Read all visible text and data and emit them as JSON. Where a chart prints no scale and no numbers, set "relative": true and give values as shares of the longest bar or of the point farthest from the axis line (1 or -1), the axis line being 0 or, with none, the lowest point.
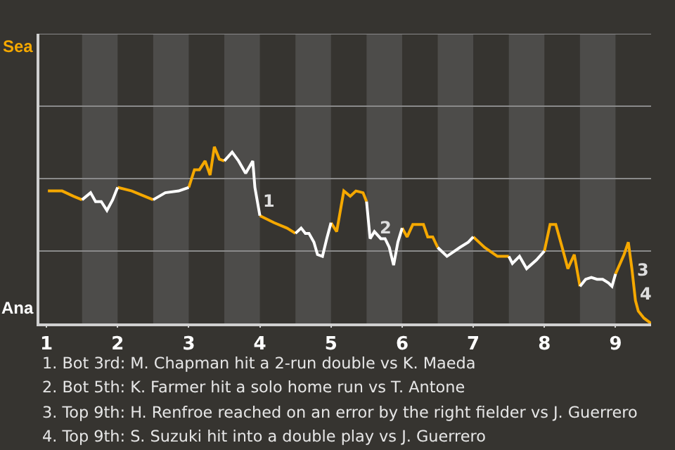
{
  "chart_data": {
    "type": "line",
    "relative": true,
    "x": [
      1.02,
      1.22,
      1.38,
      1.5,
      1.62,
      1.69,
      1.77,
      1.85,
      1.93,
      2.0,
      2.2,
      2.38,
      2.5,
      2.67,
      2.86,
      3.0,
      3.08,
      3.15,
      3.23,
      3.3,
      3.36,
      3.43,
      3.5,
      3.61,
      3.7,
      3.8,
      3.9,
      3.93,
      4.0,
      4.2,
      4.38,
      4.5,
      4.58,
      4.64,
      4.69,
      4.76,
      4.81,
      4.88,
      4.94,
      5.0,
      5.08,
      5.18,
      5.27,
      5.35,
      5.45,
      5.5,
      5.55,
      5.61,
      5.7,
      5.76,
      5.82,
      5.88,
      5.94,
      6.0,
      6.07,
      6.15,
      6.3,
      6.36,
      6.43,
      6.5,
      6.63,
      6.81,
      6.93,
      7.0,
      7.16,
      7.34,
      7.5,
      7.55,
      7.65,
      7.75,
      7.89,
      8.0,
      8.08,
      8.16,
      8.25,
      8.33,
      8.42,
      8.5,
      8.58,
      8.66,
      8.74,
      8.82,
      8.9,
      8.95,
      9.0,
      9.12,
      9.18,
      9.23,
      9.28,
      9.32,
      9.4,
      9.5
    ],
    "series": [
      {
        "color": "#f5a800",
        "values": [
          0.75,
          0.75,
          0.72,
          0.7,
          null,
          null,
          null,
          null,
          null,
          0.77,
          0.75,
          0.72,
          0.7,
          null,
          null,
          0.77,
          0.87,
          0.87,
          0.92,
          0.84,
          1,
          0.93,
          0.92,
          null,
          null,
          null,
          null,
          null,
          0.61,
          0.57,
          0.54,
          0.51,
          null,
          null,
          null,
          null,
          null,
          null,
          null,
          0.57,
          0.52,
          0.75,
          0.72,
          0.75,
          0.74,
          0.69,
          null,
          null,
          null,
          null,
          null,
          null,
          null,
          0.54,
          0.49,
          0.56,
          0.56,
          0.49,
          0.49,
          0.43,
          null,
          null,
          null,
          0.49,
          0.43,
          0.38,
          0.38,
          null,
          null,
          null,
          null,
          0.41,
          0.56,
          0.56,
          0.43,
          0.31,
          0.39,
          0.21,
          null,
          null,
          null,
          null,
          null,
          null,
          0.28,
          0.39,
          0.46,
          0.31,
          0.13,
          0.07,
          0.03,
          0
        ]
      },
      {
        "color": "#ffffff",
        "values": [
          null,
          null,
          null,
          0.7,
          0.74,
          0.69,
          0.69,
          0.64,
          0.7,
          0.77,
          null,
          null,
          0.7,
          0.74,
          0.75,
          0.77,
          null,
          null,
          null,
          null,
          null,
          null,
          0.92,
          0.97,
          0.92,
          0.85,
          0.92,
          0.77,
          0.61,
          null,
          null,
          0.51,
          0.54,
          0.51,
          0.51,
          0.46,
          0.39,
          0.38,
          0.48,
          0.57,
          null,
          null,
          null,
          null,
          null,
          0.69,
          0.48,
          0.52,
          0.48,
          0.48,
          0.43,
          0.33,
          0.46,
          0.54,
          null,
          null,
          null,
          null,
          null,
          0.43,
          0.38,
          0.43,
          0.46,
          0.49,
          null,
          null,
          0.38,
          0.34,
          0.38,
          0.31,
          0.36,
          0.41,
          null,
          null,
          null,
          null,
          null,
          0.21,
          0.25,
          0.26,
          0.25,
          0.25,
          0.23,
          0.21,
          0.28,
          null,
          null,
          null,
          null,
          null,
          null,
          null
        ]
      }
    ],
    "xlim": [
      0.9,
      9.5
    ],
    "xticks": [
      1,
      2,
      3,
      4,
      5,
      6,
      7,
      8,
      9
    ],
    "ref_lines": [
      {
        "axis": "y",
        "value": 0.41,
        "color": "#8a8a8a"
      },
      {
        "axis": "y",
        "value": 0.82,
        "color": "#8a8a8a"
      },
      {
        "axis": "y",
        "value": 1.23,
        "color": "#8a8a8a"
      },
      {
        "axis": "y",
        "value": 1.64,
        "color": "#8a8a8a"
      }
    ],
    "marker": "none",
    "line_style": "solid",
    "bands": [
      {
        "axis": "x",
        "from": 1.5,
        "to": 2,
        "color": "#4d4c4a"
      },
      {
        "axis": "x",
        "from": 2.5,
        "to": 3,
        "color": "#4d4c4a"
      },
      {
        "axis": "x",
        "from": 3.5,
        "to": 4,
        "color": "#4d4c4a"
      },
      {
        "axis": "x",
        "from": 4.5,
        "to": 5,
        "color": "#4d4c4a"
      },
      {
        "axis": "x",
        "from": 5.5,
        "to": 6,
        "color": "#4d4c4a"
      },
      {
        "axis": "x",
        "from": 6.5,
        "to": 7,
        "color": "#4d4c4a"
      },
      {
        "axis": "x",
        "from": 7.5,
        "to": 8,
        "color": "#4d4c4a"
      },
      {
        "axis": "x",
        "from": 8.5,
        "to": 9,
        "color": "#4d4c4a"
      }
    ],
    "annotations": [
      "Sea",
      "Ana",
      {
        "text": "1",
        "x": 3.97,
        "y": 0.69
      },
      {
        "text": "2",
        "x": 5.6,
        "y": 0.54
      },
      {
        "text": "3",
        "x": 9.23,
        "y": 0.3
      },
      {
        "text": "4",
        "x": 9.27,
        "y": 0.17
      },
      "1. Bot 3rd: M. Chapman hit a 2-run double vs K. Maeda",
      "2. Bot 5th: K. Farmer hit a solo home run vs T. Antone",
      "3. Top 9th: H. Renfroe reached on an error by the right fielder vs J. Guerrero",
      "4. Top 9th: S. Suzuki hit into a double play vs J. Guerrero"
    ]
  }
}
